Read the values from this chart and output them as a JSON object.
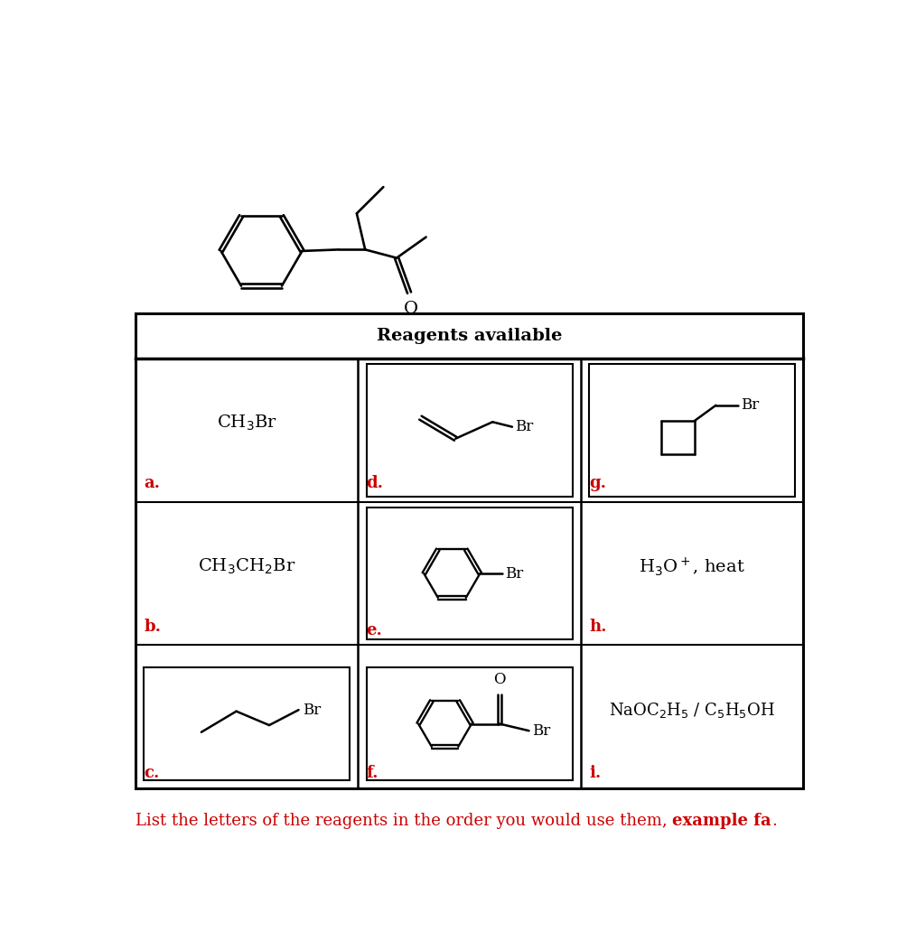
{
  "bg_color": "#ffffff",
  "title_reagents": "Reagents available",
  "label_color": "#cc0000",
  "text_color": "#000000",
  "line_color": "#000000",
  "bottom_text_plain": "List the letters of the reagents in the order you would use them, ",
  "bottom_text_bold": "example fa",
  "bottom_text_end": ".",
  "figw": 10.14,
  "figh": 10.52
}
